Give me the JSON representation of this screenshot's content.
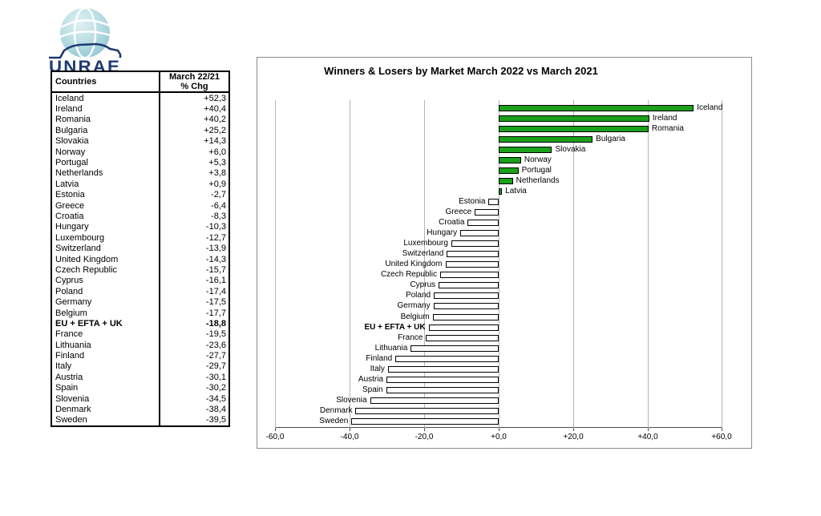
{
  "logo": {
    "text": "UNRAE",
    "globe_color_light": "#d9eef1",
    "globe_color_dark": "#9ccdd8",
    "brand_color": "#1f3a70"
  },
  "table": {
    "header": {
      "col1": "Countries",
      "col2_line1": "March 22/21",
      "col2_line2": "% Chg"
    },
    "rows": [
      {
        "country": "Iceland",
        "chg": "+52,3",
        "bold": false
      },
      {
        "country": "Ireland",
        "chg": "+40,4",
        "bold": false
      },
      {
        "country": "Romania",
        "chg": "+40,2",
        "bold": false
      },
      {
        "country": "Bulgaria",
        "chg": "+25,2",
        "bold": false
      },
      {
        "country": "Slovakia",
        "chg": "+14,3",
        "bold": false
      },
      {
        "country": "Norway",
        "chg": "+6,0",
        "bold": false
      },
      {
        "country": "Portugal",
        "chg": "+5,3",
        "bold": false
      },
      {
        "country": "Netherlands",
        "chg": "+3,8",
        "bold": false
      },
      {
        "country": "Latvia",
        "chg": "+0,9",
        "bold": false
      },
      {
        "country": "Estonia",
        "chg": "-2,7",
        "bold": false
      },
      {
        "country": "Greece",
        "chg": "-6,4",
        "bold": false
      },
      {
        "country": "Croatia",
        "chg": "-8,3",
        "bold": false
      },
      {
        "country": "Hungary",
        "chg": "-10,3",
        "bold": false
      },
      {
        "country": "Luxembourg",
        "chg": "-12,7",
        "bold": false
      },
      {
        "country": "Switzerland",
        "chg": "-13,9",
        "bold": false
      },
      {
        "country": "United Kingdom",
        "chg": "-14,3",
        "bold": false
      },
      {
        "country": "Czech Republic",
        "chg": "-15,7",
        "bold": false
      },
      {
        "country": "Cyprus",
        "chg": "-16,1",
        "bold": false
      },
      {
        "country": "Poland",
        "chg": "-17,4",
        "bold": false
      },
      {
        "country": "Germany",
        "chg": "-17,5",
        "bold": false
      },
      {
        "country": "Belgium",
        "chg": "-17,7",
        "bold": false
      },
      {
        "country": "EU + EFTA + UK",
        "chg": "-18,8",
        "bold": true
      },
      {
        "country": "France",
        "chg": "-19,5",
        "bold": false
      },
      {
        "country": "Lithuania",
        "chg": "-23,6",
        "bold": false
      },
      {
        "country": "Finland",
        "chg": "-27,7",
        "bold": false
      },
      {
        "country": "Italy",
        "chg": "-29,7",
        "bold": false
      },
      {
        "country": "Austria",
        "chg": "-30,1",
        "bold": false
      },
      {
        "country": "Spain",
        "chg": "-30,2",
        "bold": false
      },
      {
        "country": "Slovenia",
        "chg": "-34,5",
        "bold": false
      },
      {
        "country": "Denmark",
        "chg": "-38,4",
        "bold": false
      },
      {
        "country": "Sweden",
        "chg": "-39,5",
        "bold": false
      }
    ]
  },
  "chart_data": {
    "type": "bar",
    "orientation": "horizontal",
    "title": "Winners & Losers by Market March 2022 vs March 2021",
    "categories": [
      "Iceland",
      "Ireland",
      "Romania",
      "Bulgaria",
      "Slovakia",
      "Norway",
      "Portugal",
      "Netherlands",
      "Latvia",
      "Estonia",
      "Greece",
      "Croatia",
      "Hungary",
      "Luxembourg",
      "Switzerland",
      "United Kingdom",
      "Czech Republic",
      "Cyprus",
      "Poland",
      "Germany",
      "Belgium",
      "EU + EFTA + UK",
      "France",
      "Lithuania",
      "Finland",
      "Italy",
      "Austria",
      "Spain",
      "Slovenia",
      "Denmark",
      "Sweden"
    ],
    "values": [
      52.3,
      40.4,
      40.2,
      25.2,
      14.3,
      6.0,
      5.3,
      3.8,
      0.9,
      -2.7,
      -6.4,
      -8.3,
      -10.3,
      -12.7,
      -13.9,
      -14.3,
      -15.7,
      -16.1,
      -17.4,
      -17.5,
      -17.7,
      -18.8,
      -19.5,
      -23.6,
      -27.7,
      -29.7,
      -30.1,
      -30.2,
      -34.5,
      -38.4,
      -39.5
    ],
    "xlabel": "",
    "ylabel": "",
    "xlim": [
      -60,
      60
    ],
    "x_tick_labels": [
      "-60,0",
      "-40,0",
      "-20,0",
      "+0,0",
      "+20,0",
      "+40,0",
      "+60,0"
    ],
    "grid": true,
    "legend": false,
    "emphasized_category": "EU + EFTA + UK",
    "positive_color": "#1aa01a",
    "negative_color": "#ffffff",
    "bar_border_color": "#000000"
  }
}
